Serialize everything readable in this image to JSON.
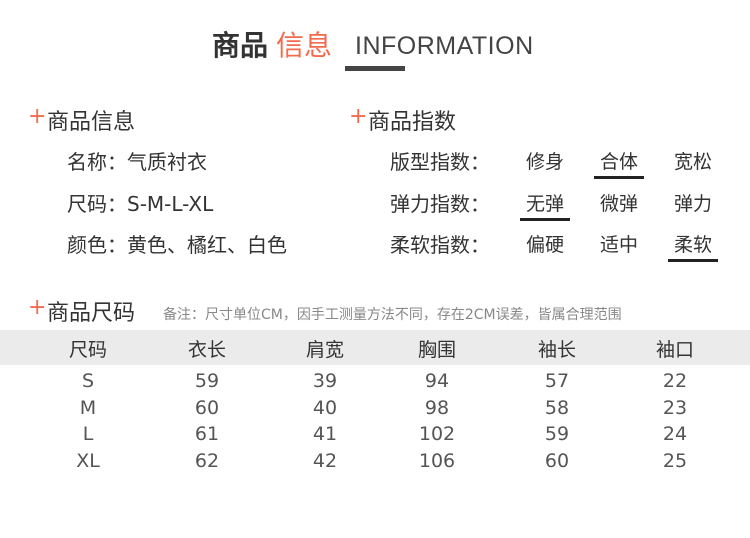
{
  "header": {
    "title_dark": "商品",
    "title_accent": "信息",
    "title_en": "INFORMATION"
  },
  "colors": {
    "accent": "#f26b4d",
    "text": "#333333",
    "table_header_bg": "#ebebeb"
  },
  "info": {
    "plus": "+",
    "heading": "商品信息",
    "rows": [
      "名称：气质衬衣",
      "尺码：S-M-L-XL",
      "颜色：黄色、橘红、白色"
    ]
  },
  "index": {
    "plus": "+",
    "heading": "商品指数",
    "rows": [
      {
        "label": "版型指数：",
        "options": [
          "修身",
          "合体",
          "宽松"
        ],
        "selected": "合体"
      },
      {
        "label": "弹力指数：",
        "options": [
          "无弹",
          "微弹",
          "弹力"
        ],
        "selected": "无弹"
      },
      {
        "label": "柔软指数：",
        "options": [
          "偏硬",
          "适中",
          "柔软"
        ],
        "selected": "柔软"
      }
    ]
  },
  "size": {
    "plus": "+",
    "heading": "商品尺码",
    "note": "备注：尺寸单位CM，因手工测量方法不同，存在2CM误差，皆属合理范围",
    "columns": [
      "尺码",
      "衣长",
      "肩宽",
      "胸围",
      "袖长",
      "袖口"
    ],
    "rows": [
      [
        "S",
        "59",
        "39",
        "94",
        "57",
        "22"
      ],
      [
        "M",
        "60",
        "40",
        "98",
        "58",
        "23"
      ],
      [
        "L",
        "61",
        "41",
        "102",
        "59",
        "24"
      ],
      [
        "XL",
        "62",
        "42",
        "106",
        "60",
        "25"
      ]
    ]
  }
}
